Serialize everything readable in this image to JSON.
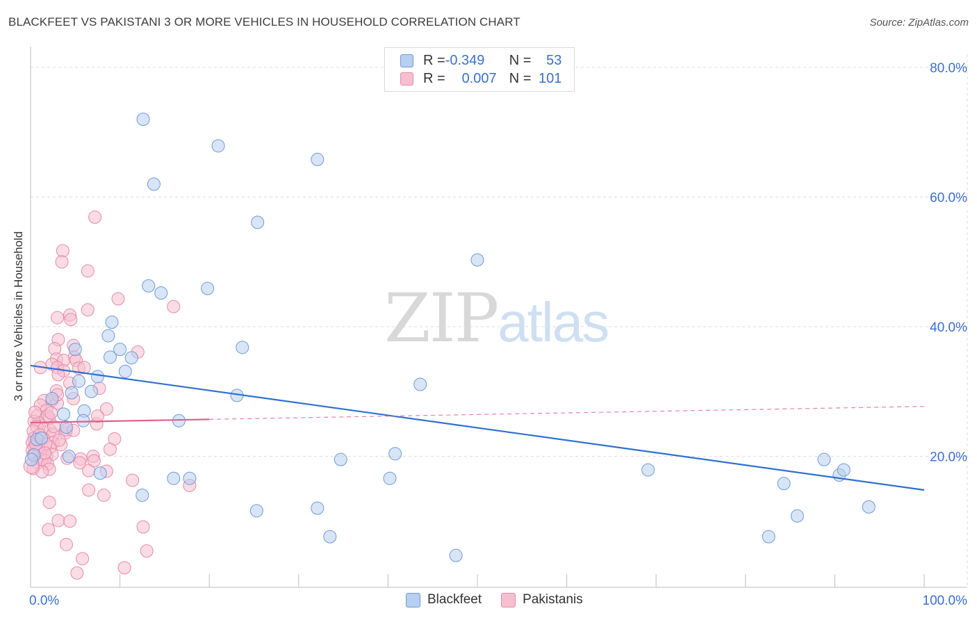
{
  "title": "BLACKFEET VS PAKISTANI 3 OR MORE VEHICLES IN HOUSEHOLD CORRELATION CHART",
  "source": "Source: ZipAtlas.com",
  "watermark": {
    "part1": "ZIP",
    "part2": "atlas"
  },
  "legend": {
    "rows": [
      {
        "r_label": "R = ",
        "r_value": "-0.349",
        "n_label": "N = ",
        "n_value": "53"
      },
      {
        "r_label": "R = ",
        "r_value": "0.007",
        "n_label": "N = ",
        "n_value": "101"
      }
    ]
  },
  "bottom_legend": [
    "Blackfeet",
    "Pakistanis"
  ],
  "colors": {
    "blackfeet_fill": "#b7cff0",
    "blackfeet_stroke": "#6f9ad8",
    "blackfeet_line": "#2f6fd0",
    "pakistani_fill": "#f6bfd0",
    "pakistani_stroke": "#e58aa8",
    "pakistani_line": "#e0608a",
    "axis_text": "#3a6fcf",
    "grid": "#dcdcdc"
  },
  "chart_data": {
    "type": "scatter",
    "title": "BLACKFEET VS PAKISTANI 3 OR MORE VEHICLES IN HOUSEHOLD CORRELATION CHART",
    "xlabel": "",
    "ylabel": "3 or more Vehicles in Household",
    "xlim": [
      0,
      100
    ],
    "ylim": [
      0,
      80
    ],
    "x_tick_labels": [
      "0.0%",
      "100.0%"
    ],
    "y_ticks": [
      20,
      40,
      60,
      80
    ],
    "y_tick_labels": [
      "20.0%",
      "40.0%",
      "60.0%",
      "80.0%"
    ],
    "series": [
      {
        "name": "Blackfeet",
        "r": -0.349,
        "n": 53,
        "trend": {
          "x": [
            0,
            100
          ],
          "y": [
            34.0,
            14.8
          ],
          "dashed_to": null
        },
        "points": [
          [
            12.6,
            72.0
          ],
          [
            21.0,
            67.9
          ],
          [
            32.1,
            65.8
          ],
          [
            13.8,
            62.0
          ],
          [
            25.4,
            56.1
          ],
          [
            50.0,
            50.3
          ],
          [
            13.2,
            46.3
          ],
          [
            14.6,
            45.2
          ],
          [
            19.8,
            45.9
          ],
          [
            9.1,
            40.7
          ],
          [
            8.7,
            38.6
          ],
          [
            23.7,
            36.8
          ],
          [
            5.0,
            36.5
          ],
          [
            10.0,
            36.5
          ],
          [
            8.9,
            35.3
          ],
          [
            11.3,
            35.2
          ],
          [
            10.6,
            33.1
          ],
          [
            7.5,
            32.3
          ],
          [
            5.4,
            31.6
          ],
          [
            43.6,
            31.1
          ],
          [
            6.8,
            30.0
          ],
          [
            23.1,
            29.4
          ],
          [
            4.6,
            29.8
          ],
          [
            2.4,
            28.9
          ],
          [
            6.0,
            27.0
          ],
          [
            3.7,
            26.5
          ],
          [
            5.9,
            25.5
          ],
          [
            16.6,
            25.5
          ],
          [
            4.0,
            24.5
          ],
          [
            0.7,
            22.6
          ],
          [
            1.2,
            22.8
          ],
          [
            0.4,
            20.2
          ],
          [
            0.1,
            19.5
          ],
          [
            4.3,
            20.0
          ],
          [
            34.7,
            19.5
          ],
          [
            40.8,
            20.4
          ],
          [
            7.8,
            17.4
          ],
          [
            16.0,
            16.6
          ],
          [
            17.8,
            16.6
          ],
          [
            40.2,
            16.6
          ],
          [
            69.1,
            17.9
          ],
          [
            88.8,
            19.5
          ],
          [
            90.5,
            17.1
          ],
          [
            91.0,
            17.9
          ],
          [
            84.3,
            15.8
          ],
          [
            12.5,
            14.0
          ],
          [
            25.3,
            11.6
          ],
          [
            32.1,
            12.0
          ],
          [
            85.8,
            10.8
          ],
          [
            93.8,
            12.2
          ],
          [
            33.5,
            7.6
          ],
          [
            82.6,
            7.6
          ],
          [
            47.6,
            4.7
          ]
        ]
      },
      {
        "name": "Pakistanis",
        "r": 0.007,
        "n": 101,
        "trend": {
          "x": [
            0,
            20
          ],
          "y": [
            25.2,
            25.7
          ],
          "dashed_to": {
            "x": 100,
            "y": 27.7
          }
        },
        "points": [
          [
            7.2,
            56.9
          ],
          [
            3.6,
            51.7
          ],
          [
            3.5,
            50.0
          ],
          [
            6.4,
            48.6
          ],
          [
            9.8,
            44.3
          ],
          [
            16.0,
            43.1
          ],
          [
            6.4,
            42.6
          ],
          [
            4.4,
            41.8
          ],
          [
            4.5,
            41.1
          ],
          [
            3.0,
            41.4
          ],
          [
            3.1,
            38.0
          ],
          [
            4.8,
            37.1
          ],
          [
            2.7,
            36.6
          ],
          [
            12.0,
            36.1
          ],
          [
            4.9,
            35.3
          ],
          [
            2.9,
            35.0
          ],
          [
            3.7,
            34.8
          ],
          [
            5.1,
            34.8
          ],
          [
            2.4,
            34.2
          ],
          [
            1.1,
            33.7
          ],
          [
            3.0,
            33.7
          ],
          [
            5.4,
            33.6
          ],
          [
            6.0,
            33.7
          ],
          [
            3.7,
            33.2
          ],
          [
            3.1,
            32.6
          ],
          [
            4.4,
            31.3
          ],
          [
            7.7,
            30.5
          ],
          [
            2.9,
            30.1
          ],
          [
            4.8,
            28.9
          ],
          [
            2.4,
            28.6
          ],
          [
            1.5,
            28.6
          ],
          [
            1.1,
            27.9
          ],
          [
            3.0,
            28.2
          ],
          [
            8.5,
            27.3
          ],
          [
            1.8,
            27.1
          ],
          [
            0.8,
            26.3
          ],
          [
            2.1,
            25.9
          ],
          [
            1.9,
            26.2
          ],
          [
            0.9,
            25.2
          ],
          [
            0.4,
            25.4
          ],
          [
            7.4,
            25.0
          ],
          [
            0.7,
            24.6
          ],
          [
            1.5,
            24.2
          ],
          [
            2.2,
            24.0
          ],
          [
            0.3,
            23.9
          ],
          [
            3.9,
            23.6
          ],
          [
            4.0,
            24.1
          ],
          [
            2.5,
            23.4
          ],
          [
            0.4,
            22.8
          ],
          [
            1.4,
            22.8
          ],
          [
            0.9,
            22.5
          ],
          [
            0.2,
            22.1
          ],
          [
            2.5,
            22.1
          ],
          [
            3.4,
            21.8
          ],
          [
            0.4,
            21.5
          ],
          [
            0.9,
            21.3
          ],
          [
            8.9,
            21.1
          ],
          [
            2.2,
            21.4
          ],
          [
            1.7,
            21.9
          ],
          [
            0.2,
            20.9
          ],
          [
            0.9,
            20.8
          ],
          [
            0.3,
            20.2
          ],
          [
            1.8,
            20.1
          ],
          [
            2.4,
            20.3
          ],
          [
            7.0,
            20.0
          ],
          [
            4.1,
            19.7
          ],
          [
            1.2,
            19.5
          ],
          [
            5.6,
            19.6
          ],
          [
            1.6,
            19.3
          ],
          [
            7.1,
            19.3
          ],
          [
            0.8,
            19.0
          ],
          [
            1.9,
            18.8
          ],
          [
            0.3,
            18.1
          ],
          [
            6.5,
            17.8
          ],
          [
            2.1,
            18.0
          ],
          [
            1.3,
            17.6
          ],
          [
            8.5,
            17.7
          ],
          [
            11.4,
            16.3
          ],
          [
            17.8,
            15.5
          ],
          [
            6.5,
            14.8
          ],
          [
            8.2,
            14.0
          ],
          [
            2.1,
            12.9
          ],
          [
            3.1,
            10.1
          ],
          [
            4.4,
            10.0
          ],
          [
            12.6,
            9.1
          ],
          [
            2.0,
            8.7
          ],
          [
            4.0,
            6.4
          ],
          [
            13.0,
            5.4
          ],
          [
            5.8,
            4.2
          ],
          [
            10.5,
            2.8
          ],
          [
            9.4,
            22.7
          ],
          [
            1.0,
            23.3
          ],
          [
            0.5,
            26.8
          ],
          [
            3.0,
            29.5
          ],
          [
            2.6,
            24.6
          ],
          [
            0.6,
            21.9
          ],
          [
            1.6,
            20.5
          ],
          [
            5.5,
            19.0
          ],
          [
            3.2,
            22.5
          ],
          [
            2.3,
            26.7
          ],
          [
            4.8,
            24.0
          ],
          [
            7.5,
            26.2
          ],
          [
            5.2,
            2.0
          ]
        ]
      }
    ]
  }
}
